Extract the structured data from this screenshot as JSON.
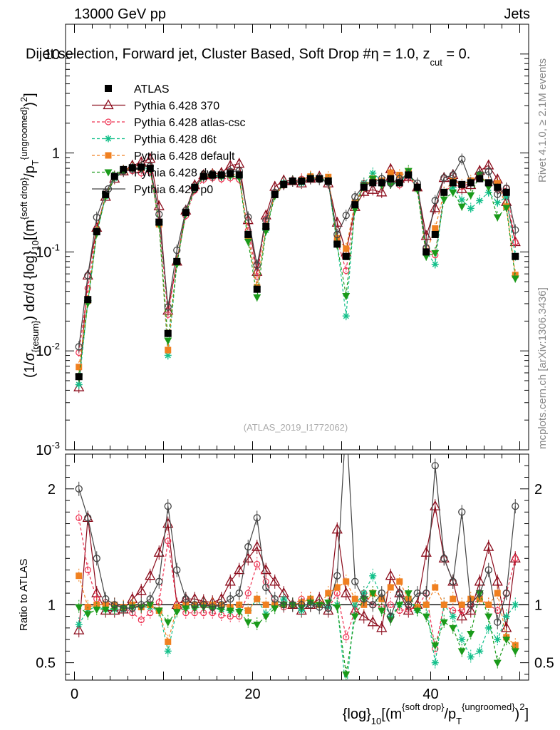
{
  "header": {
    "left": "13000 GeV pp",
    "right": "Jets",
    "title": "Dijet selection, Forward jet, Cluster Based, Soft Drop #β = 1.0, z_cut = 0.",
    "title_main": "Dijet selection, Forward jet, Cluster Based, Soft Drop #",
    "title_eta": "η",
    "title_tail": " = 1.0, z",
    "title_sub": "cut",
    "title_end": " = 0."
  },
  "side": {
    "rivet": "Rivet 4.1.0, ≥ 2.1M events",
    "mcplots": "mcplots.cern.ch [arXiv:1306.3436]"
  },
  "watermark": "(ATLAS_2019_I1772062)",
  "axes": {
    "ylabel_main": "(1/σ_{resum}) dσ/d {log}_{10}[(m^{soft drop}/p_T^{ungroomed})^2]",
    "ylabel_ratio": "Ratio to ATLAS",
    "xlabel": "{log}_{10}[(m^{soft drop}/p_T^{ungroomed})^2]"
  },
  "colors": {
    "ATLAS": "#000000",
    "p370": "#8b0a1a",
    "atlascsc": "#ee3050",
    "d6t": "#13c08a",
    "default": "#f08020",
    "dw": "#1a9a1a",
    "p0": "#444444"
  },
  "chart_data": {
    "type": "scatter",
    "x": [
      0.5,
      1.5,
      2.5,
      3.5,
      4.5,
      5.5,
      6.5,
      7.5,
      8.5,
      9.5,
      10.5,
      11.5,
      12.5,
      13.5,
      14.5,
      15.5,
      16.5,
      17.5,
      18.5,
      19.5,
      20.5,
      21.5,
      22.5,
      23.5,
      24.5,
      25.5,
      26.5,
      27.5,
      28.5,
      29.5,
      30.5,
      31.5,
      32.5,
      33.5,
      34.5,
      35.5,
      36.5,
      37.5,
      38.5,
      39.5,
      40.5,
      41.5,
      42.5,
      43.5,
      44.5,
      45.5,
      46.5,
      47.5,
      48.5,
      49.5
    ],
    "xlim": [
      -1,
      51
    ],
    "ylim_main": [
      0.001,
      20
    ],
    "ylim_ratio": [
      0.35,
      2.3
    ],
    "x_ticks": [
      0,
      20,
      40
    ],
    "x_tick_labels": [
      "0",
      "20",
      "40"
    ],
    "y_ticks_main": [
      0.001,
      0.01,
      0.1,
      1,
      10
    ],
    "y_tick_labels_main": [
      "10^{-3}",
      "10^{-2}",
      "10^{-1}",
      "1",
      "10"
    ],
    "y_ticks_ratio": [
      0.5,
      1,
      2
    ],
    "y_tick_labels_ratio": [
      "0.5",
      "1",
      "2"
    ],
    "reference": {
      "name": "ATLAS",
      "values": [
        0.0055,
        0.033,
        0.16,
        0.38,
        0.58,
        0.68,
        0.71,
        0.72,
        0.7,
        0.2,
        0.015,
        0.08,
        0.25,
        0.45,
        0.58,
        0.6,
        0.6,
        0.62,
        0.6,
        0.15,
        0.042,
        0.18,
        0.38,
        0.48,
        0.52,
        0.52,
        0.55,
        0.55,
        0.52,
        0.12,
        0.09,
        0.3,
        0.45,
        0.5,
        0.5,
        0.55,
        0.5,
        0.6,
        0.45,
        0.1,
        0.15,
        0.4,
        0.5,
        0.48,
        0.5,
        0.55,
        0.5,
        0.45,
        0.4,
        0.09
      ]
    },
    "series": [
      {
        "name": "Pythia 6.428 370",
        "key": "p370",
        "marker": "triangle",
        "ratios": [
          0.78,
          1.75,
          1.1,
          0.95,
          0.95,
          0.96,
          1.05,
          1.12,
          1.25,
          1.45,
          1.7,
          1.0,
          1.05,
          1.05,
          1.03,
          1.02,
          1.05,
          1.2,
          1.3,
          1.4,
          1.5,
          1.3,
          1.2,
          1.1,
          1.0,
          0.95,
          1.0,
          1.05,
          0.95,
          1.65,
          1.1,
          0.95,
          0.9,
          0.85,
          0.8,
          1.25,
          1.1,
          0.95,
          1.0,
          1.45,
          1.85,
          1.4,
          1.2,
          0.9,
          0.95,
          1.2,
          1.5,
          1.2,
          0.8,
          1.4
        ]
      },
      {
        "name": "Pythia 6.428 atlas-csc",
        "key": "atlascsc",
        "marker": "circle-dash",
        "dashed": true,
        "ratios": [
          1.75,
          1.3,
          1.05,
          1.02,
          1.0,
          0.98,
          0.93,
          0.87,
          0.93,
          1.02,
          1.55,
          1.0,
          0.93,
          0.93,
          0.93,
          0.93,
          0.91,
          0.9,
          0.9,
          1.1,
          1.35,
          1.2,
          1.0,
          0.98,
          1.0,
          1.05,
          1.05,
          1.0,
          0.97,
          1.1,
          0.72,
          0.95,
          1.1,
          1.0,
          0.98,
          1.0,
          0.95,
          0.96,
          0.98,
          1.1,
          0.62,
          1.0,
          0.95,
          0.95,
          1.0,
          1.05,
          1.0,
          0.95,
          1.1,
          1.4
        ]
      },
      {
        "name": "Pythia 6.428 d6t",
        "key": "d6t",
        "marker": "star",
        "dashed": true,
        "ratios": [
          0.83,
          0.96,
          0.98,
          0.96,
          0.96,
          0.96,
          0.98,
          0.98,
          0.98,
          0.95,
          0.6,
          0.96,
          0.98,
          0.98,
          1.0,
          0.98,
          0.96,
          0.95,
          0.96,
          0.95,
          1.05,
          0.92,
          1.0,
          1.05,
          1.0,
          0.95,
          1.02,
          1.0,
          0.98,
          1.0,
          0.25,
          1.0,
          1.1,
          1.25,
          1.05,
          0.9,
          1.0,
          1.05,
          0.95,
          1.0,
          0.5,
          1.0,
          0.9,
          0.7,
          0.55,
          0.6,
          0.8,
          0.7,
          0.9,
          1.0
        ]
      },
      {
        "name": "Pythia 6.428 default",
        "key": "default",
        "marker": "square",
        "dashed": true,
        "ratios": [
          1.25,
          0.98,
          1.0,
          1.0,
          1.0,
          0.98,
          1.0,
          0.98,
          1.0,
          0.95,
          0.68,
          0.98,
          1.0,
          1.0,
          1.0,
          1.0,
          1.0,
          0.98,
          1.0,
          0.95,
          1.05,
          1.0,
          1.0,
          1.0,
          1.0,
          1.02,
          1.05,
          1.0,
          1.1,
          1.15,
          1.2,
          1.05,
          1.0,
          1.1,
          1.05,
          1.15,
          1.2,
          1.05,
          0.98,
          1.0,
          1.15,
          1.0,
          1.05,
          1.0,
          1.05,
          1.05,
          1.0,
          1.1,
          0.72,
          0.65
        ]
      },
      {
        "name": "Pythia 6.428 dw",
        "key": "dw",
        "marker": "triangle-down",
        "dashed": true,
        "ratios": [
          0.98,
          0.92,
          0.96,
          0.96,
          0.97,
          0.97,
          0.98,
          0.98,
          1.0,
          0.95,
          0.85,
          0.94,
          0.97,
          0.97,
          0.98,
          0.97,
          0.96,
          0.95,
          0.94,
          0.85,
          0.83,
          0.9,
          0.97,
          1.0,
          1.0,
          0.98,
          1.02,
          1.0,
          1.02,
          0.98,
          0.4,
          0.9,
          1.05,
          1.1,
          0.95,
          0.87,
          1.0,
          1.1,
          0.95,
          0.9,
          0.65,
          0.85,
          0.8,
          0.6,
          0.75,
          1.1,
          0.9,
          0.5,
          0.7,
          0.6
        ]
      },
      {
        "name": "Pythia 6.428 p0",
        "key": "p0",
        "marker": "circle-open",
        "ratios": [
          2.0,
          1.75,
          1.4,
          1.05,
          1.0,
          0.97,
          0.97,
          1.0,
          1.05,
          1.2,
          1.85,
          1.3,
          1.05,
          1.0,
          1.0,
          0.98,
          1.0,
          1.05,
          1.1,
          1.5,
          1.75,
          1.15,
          1.05,
          1.0,
          1.0,
          1.0,
          1.0,
          0.98,
          0.97,
          1.25,
          2.6,
          1.2,
          1.05,
          1.0,
          1.1,
          0.9,
          1.1,
          1.0,
          1.1,
          1.1,
          2.2,
          1.4,
          1.2,
          1.8,
          1.0,
          1.1,
          1.3,
          0.85,
          1.1,
          1.85
        ]
      }
    ]
  }
}
